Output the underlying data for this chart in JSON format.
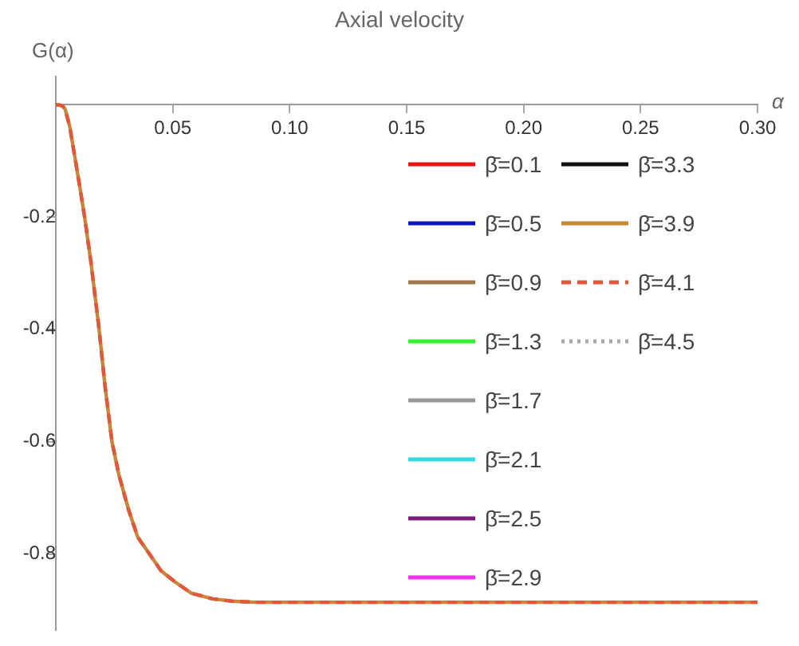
{
  "chart_data": {
    "type": "line",
    "title": "Axial velocity",
    "xlabel": "α",
    "ylabel": "G(α)",
    "x": [
      0,
      0.002,
      0.003,
      0.004,
      0.006,
      0.008,
      0.01,
      0.0123,
      0.015,
      0.0185,
      0.021,
      0.024,
      0.027,
      0.031,
      0.035,
      0.04,
      0.045,
      0.051,
      0.058,
      0.067,
      0.075,
      0.085,
      0.1,
      0.15,
      0.2,
      0.25,
      0.3
    ],
    "xlim": [
      0,
      0.3
    ],
    "xticks": [
      {
        "value": 0.05,
        "label": "0.05"
      },
      {
        "value": 0.1,
        "label": "0.10"
      },
      {
        "value": 0.15,
        "label": "0.15"
      },
      {
        "value": 0.2,
        "label": "0.20"
      },
      {
        "value": 0.25,
        "label": "0.25"
      },
      {
        "value": 0.3,
        "label": "0.30"
      }
    ],
    "ylim": [
      -0.935,
      0.05
    ],
    "yticks": [
      -0.2,
      -0.4,
      -0.6,
      -0.8
    ],
    "grid": false,
    "legend": "right",
    "marker": "none",
    "series": [
      {
        "name": "β̄=0.1",
        "color": "#ee1111",
        "line_style": "solid",
        "values": [
          null,
          null,
          null,
          null,
          null,
          null,
          null,
          null,
          null,
          null,
          null,
          null,
          null,
          null,
          null,
          null,
          null,
          null,
          null,
          null,
          null,
          null,
          null,
          null,
          null,
          null,
          null
        ]
      },
      {
        "name": "β̄=0.5",
        "color": "#1111bb",
        "line_style": "solid",
        "values": [
          null,
          null,
          null,
          null,
          null,
          null,
          null,
          null,
          null,
          null,
          null,
          null,
          null,
          null,
          null,
          null,
          null,
          null,
          null,
          null,
          null,
          null,
          null,
          null,
          null,
          null,
          null
        ]
      },
      {
        "name": "β̄=0.9",
        "color": "#a07a4a",
        "line_style": "solid",
        "values": [
          null,
          null,
          null,
          null,
          null,
          null,
          null,
          null,
          null,
          null,
          null,
          null,
          null,
          null,
          null,
          null,
          null,
          null,
          null,
          null,
          null,
          null,
          null,
          null,
          null,
          null,
          null
        ]
      },
      {
        "name": "β̄=1.3",
        "color": "#33ee33",
        "line_style": "solid",
        "values": [
          null,
          null,
          null,
          null,
          null,
          null,
          null,
          null,
          null,
          null,
          null,
          null,
          null,
          null,
          null,
          null,
          null,
          null,
          null,
          null,
          null,
          null,
          null,
          null,
          null,
          null,
          null
        ]
      },
      {
        "name": "β̄=1.7",
        "color": "#999999",
        "line_style": "solid",
        "values": [
          null,
          null,
          null,
          null,
          null,
          null,
          null,
          null,
          null,
          null,
          null,
          null,
          null,
          null,
          null,
          null,
          null,
          null,
          null,
          null,
          null,
          null,
          null,
          null,
          null,
          null,
          null
        ]
      },
      {
        "name": "β̄=2.1",
        "color": "#33dddd",
        "line_style": "solid",
        "values": [
          null,
          null,
          null,
          null,
          null,
          null,
          null,
          null,
          null,
          null,
          null,
          null,
          null,
          null,
          null,
          null,
          null,
          null,
          null,
          null,
          null,
          null,
          null,
          null,
          null,
          null,
          null
        ]
      },
      {
        "name": "β̄=2.5",
        "color": "#7a1a7a",
        "line_style": "solid",
        "values": [
          null,
          null,
          null,
          null,
          null,
          null,
          null,
          null,
          null,
          null,
          null,
          null,
          null,
          null,
          null,
          null,
          null,
          null,
          null,
          null,
          null,
          null,
          null,
          null,
          null,
          null,
          null
        ]
      },
      {
        "name": "β̄=2.9",
        "color": "#ee33ee",
        "line_style": "solid",
        "values": [
          null,
          null,
          null,
          null,
          null,
          null,
          null,
          null,
          null,
          null,
          null,
          null,
          null,
          null,
          null,
          null,
          null,
          null,
          null,
          null,
          null,
          null,
          null,
          null,
          null,
          null,
          null
        ]
      },
      {
        "name": "β̄=3.3",
        "color": "#111111",
        "line_style": "solid",
        "values": [
          null,
          null,
          null,
          null,
          null,
          null,
          null,
          null,
          null,
          null,
          null,
          null,
          null,
          null,
          null,
          null,
          null,
          null,
          null,
          null,
          null,
          null,
          null,
          null,
          null,
          null,
          null
        ]
      },
      {
        "name": "β̄=3.9",
        "color": "#c9853a",
        "line_style": "solid",
        "values": [
          0,
          -0.001,
          -0.003,
          -0.008,
          -0.04,
          -0.09,
          -0.14,
          -0.2,
          -0.28,
          -0.4,
          -0.5,
          -0.6,
          -0.66,
          -0.72,
          -0.77,
          -0.8,
          -0.83,
          -0.85,
          -0.87,
          -0.88,
          -0.884,
          -0.886,
          -0.886,
          -0.886,
          -0.886,
          -0.886,
          -0.886
        ]
      },
      {
        "name": "β̄=4.1",
        "color": "#e0583a",
        "line_style": "dashed",
        "values": [
          0,
          -0.001,
          -0.003,
          -0.008,
          -0.04,
          -0.09,
          -0.14,
          -0.2,
          -0.28,
          -0.4,
          -0.5,
          -0.6,
          -0.66,
          -0.72,
          -0.77,
          -0.8,
          -0.83,
          -0.85,
          -0.87,
          -0.88,
          -0.884,
          -0.886,
          -0.886,
          -0.886,
          -0.886,
          -0.886,
          -0.886
        ]
      },
      {
        "name": "β̄=4.5",
        "color": "#aaaaaa",
        "line_style": "dotted",
        "values": [
          null,
          null,
          null,
          null,
          null,
          null,
          null,
          null,
          null,
          null,
          null,
          null,
          null,
          null,
          null,
          null,
          null,
          null,
          null,
          null,
          null,
          null,
          null,
          null,
          null,
          null,
          null
        ]
      }
    ]
  }
}
